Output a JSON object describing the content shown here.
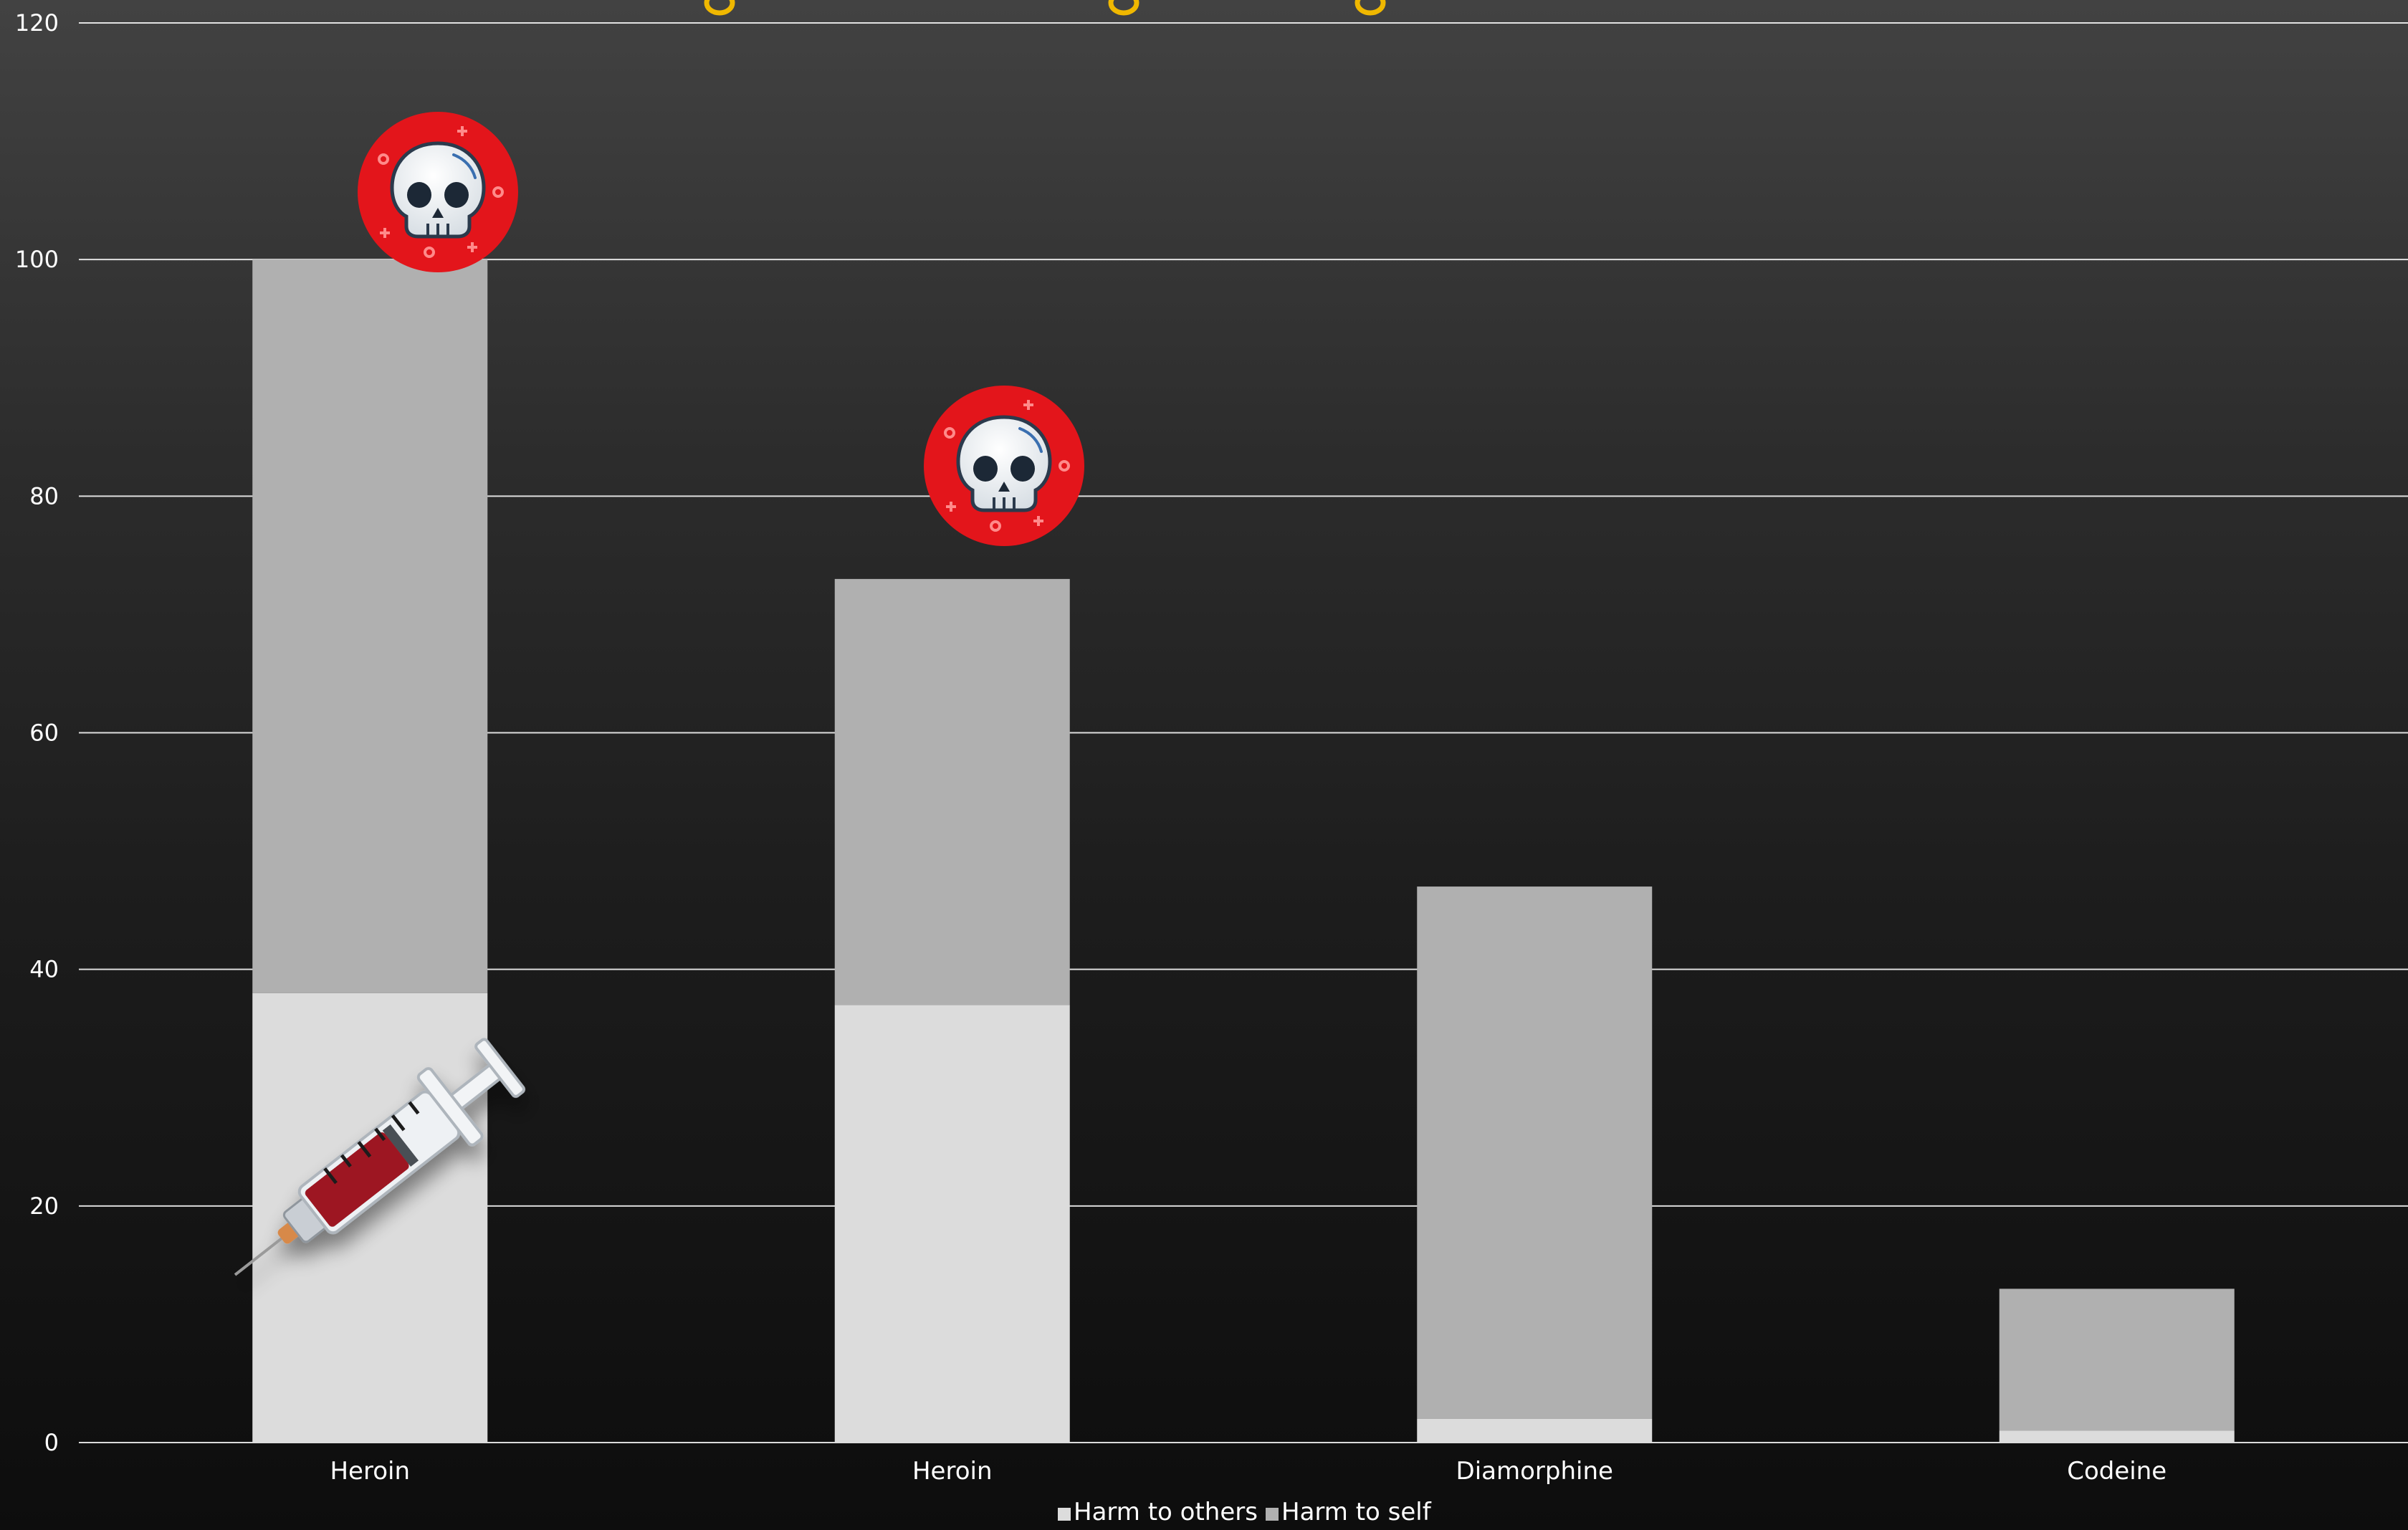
{
  "chart_data": {
    "type": "bar",
    "stacked": true,
    "categories": [
      "Heroin",
      "Heroin",
      "Diamorphine",
      "Codeine"
    ],
    "series": [
      {
        "name": "Harm to others",
        "values": [
          38,
          37,
          2,
          1
        ],
        "color": "#dcdcdc"
      },
      {
        "name": "Harm to self",
        "values": [
          62,
          36,
          45,
          12
        ],
        "color": "#b0b0b0"
      }
    ],
    "ylim": [
      0,
      120
    ],
    "yticks": [
      0,
      20,
      40,
      60,
      80,
      100,
      120
    ],
    "grid": true,
    "legend_position": "bottom",
    "gridline_color": "#ffffff",
    "title_color": "#f0b800",
    "icons": {
      "skull": "skull-icon",
      "syringe": "syringe-icon"
    }
  }
}
